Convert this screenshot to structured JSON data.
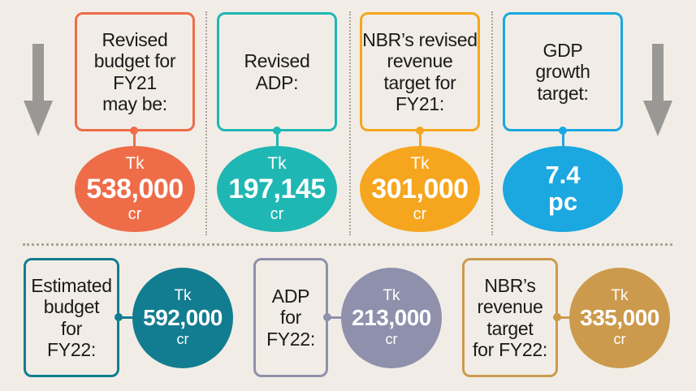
{
  "colors": {
    "background": "#f1ede6",
    "arrow": "#9a9894",
    "orange": "#ee6c48",
    "teal": "#1fb7b3",
    "amber": "#f6a61e",
    "blue": "#1ba7e0",
    "dark_teal": "#127d90",
    "slate": "#8e90ac",
    "gold": "#cc9a4c"
  },
  "top_row": [
    {
      "label": "Revised\nbudget for\nFY21\nmay be:",
      "currency": "Tk",
      "amount": "538,000",
      "unit": "cr"
    },
    {
      "label": "Revised\nADP:",
      "currency": "Tk",
      "amount": "197,145",
      "unit": "cr"
    },
    {
      "label": "NBR’s revised\nrevenue\ntarget for\nFY21:",
      "currency": "Tk",
      "amount": "301,000",
      "unit": "cr"
    },
    {
      "label": "GDP\ngrowth\ntarget:",
      "value": "7.4",
      "unit": "pc"
    }
  ],
  "bottom_row": [
    {
      "label": "Estimated\nbudget\nfor\nFY22:",
      "currency": "Tk",
      "amount": "592,000",
      "unit": "cr"
    },
    {
      "label": "ADP\nfor\nFY22:",
      "currency": "Tk",
      "amount": "213,000",
      "unit": "cr"
    },
    {
      "label": "NBR’s\nrevenue\ntarget\nfor FY22:",
      "currency": "Tk",
      "amount": "335,000",
      "unit": "cr"
    }
  ]
}
